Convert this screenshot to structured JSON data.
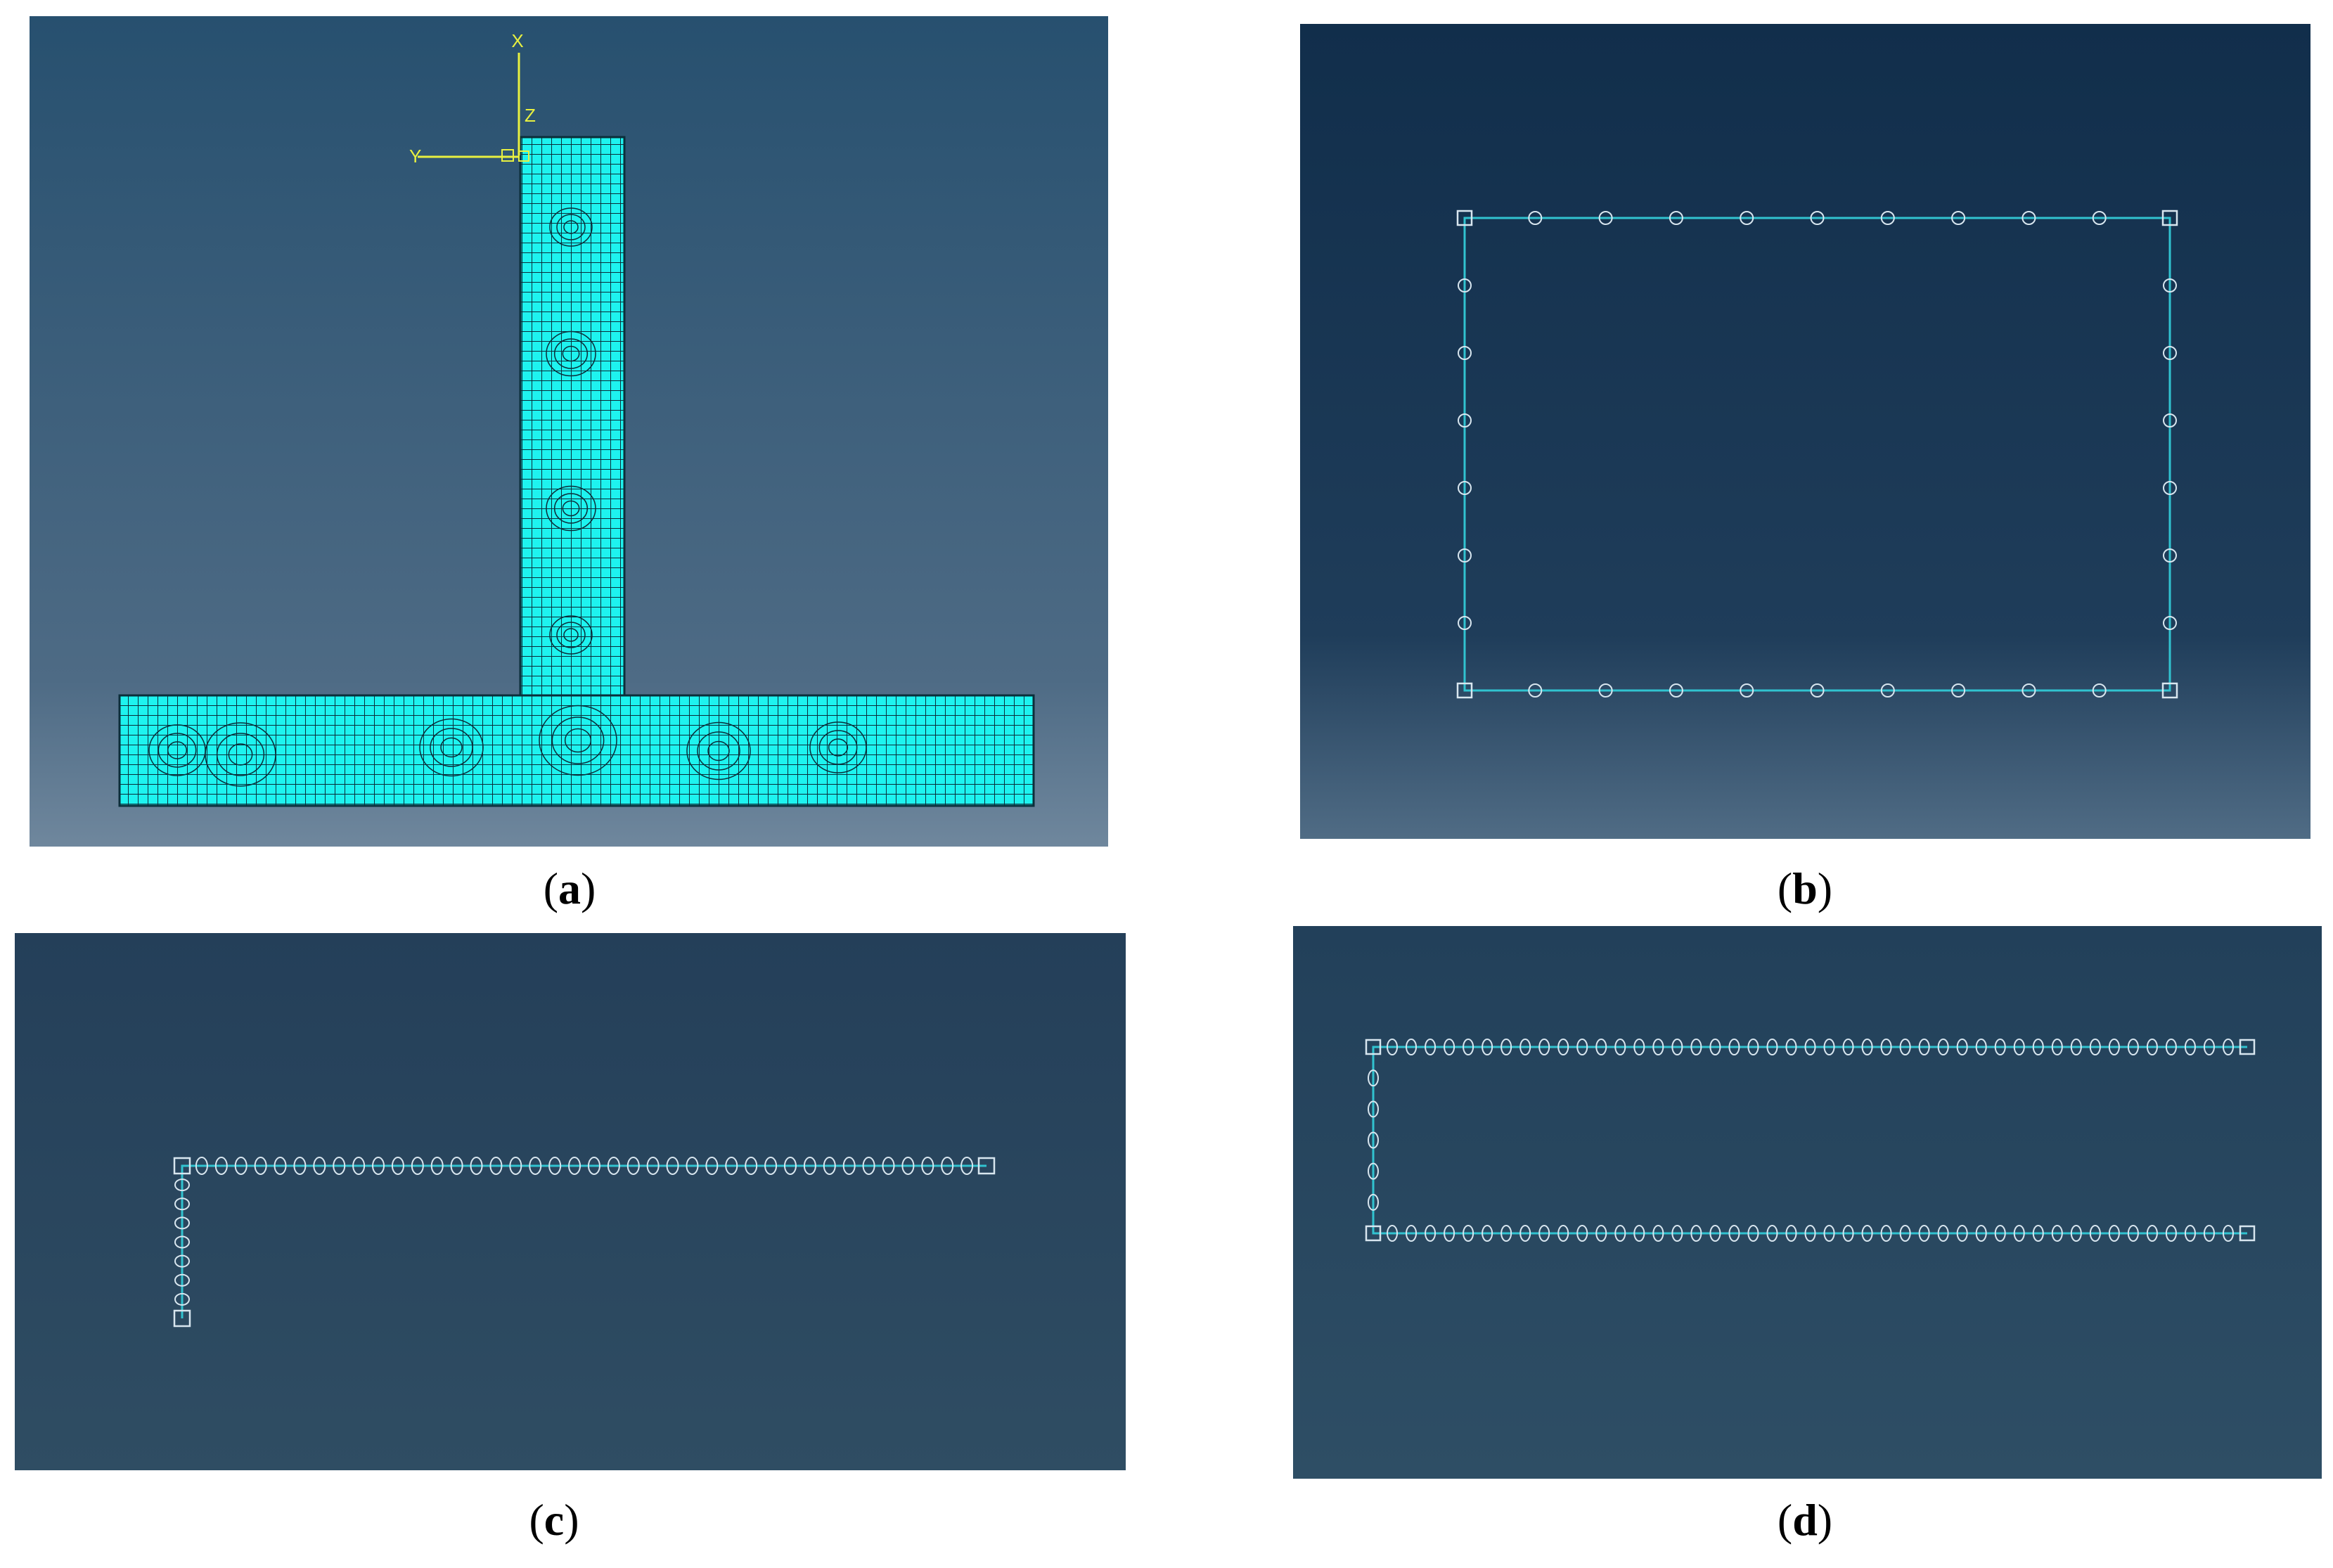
{
  "panels": [
    {
      "id": "a",
      "caption_letter": "a",
      "view": "T-section quadrilateral mesh with coordinate triad",
      "triad_labels": {
        "x": "X",
        "y": "Y",
        "z": "Z"
      },
      "colors": {
        "bg_top": "#27506f",
        "bg_bottom": "#6f879d",
        "mesh_fill": "#1ef3ef",
        "mesh_line": "#0b2e3a",
        "triad": "#e8f040"
      }
    },
    {
      "id": "b",
      "caption_letter": "b",
      "view": "closed rectangular section with nodes",
      "nodes_top_edge": 9,
      "nodes_side_edge": 6,
      "colors": {
        "bg_top": "#112e4b",
        "bg_bottom": "#506c85",
        "line": "#31c3d0",
        "node": "#d8e6ef"
      }
    },
    {
      "id": "c",
      "caption_letter": "c",
      "view": "L-shaped open section with nodes",
      "nodes_long_leg": 40,
      "nodes_short_leg": 7,
      "colors": {
        "bg_top": "#243f59",
        "bg_bottom": "#2f4d63",
        "line": "#31c3d0",
        "node": "#d8e6ef"
      }
    },
    {
      "id": "d",
      "caption_letter": "d",
      "view": "C-shaped open section with nodes",
      "nodes_flange": 45,
      "nodes_web": 5,
      "colors": {
        "bg_top": "#22405a",
        "bg_bottom": "#2e4e65",
        "line": "#31c3d0",
        "node": "#d8e6ef"
      }
    }
  ]
}
